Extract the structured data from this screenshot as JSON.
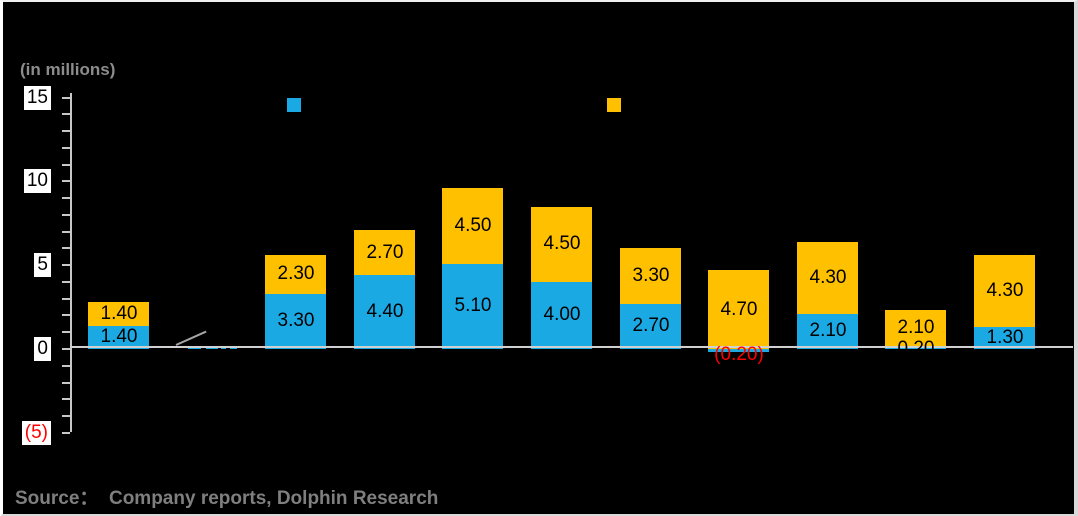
{
  "header": {
    "axis_note": "(in millions)"
  },
  "source_line": "Source：  Company reports, Dolphin Research",
  "colors": {
    "background": "#000000",
    "blue_series": "#1BA9E4",
    "yellow_series": "#FFC000",
    "negative_label": "#FF0000",
    "axis_gray": "#c8c8c8",
    "text_gray": "#7f7f7f",
    "label_black": "#000000",
    "label_box_white": "#ffffff"
  },
  "y_axis": {
    "max": 15,
    "min": -5,
    "minor_tick_step": 1,
    "major_labels": [
      {
        "text": "15",
        "value": 15,
        "color": "#000000"
      },
      {
        "text": "10",
        "value": 10,
        "color": "#000000"
      },
      {
        "text": "5",
        "value": 5,
        "color": "#000000"
      },
      {
        "text": "0",
        "value": 0,
        "color": "#000000"
      },
      {
        "text": "(5)",
        "value": -5,
        "color": "#FF0000"
      }
    ]
  },
  "legend": {
    "items": [
      {
        "name": "blue-series",
        "color": "#1BA9E4",
        "label": ""
      },
      {
        "name": "yellow-series",
        "color": "#FFC000",
        "label": ""
      }
    ]
  },
  "chart_data": {
    "type": "bar",
    "stacked": true,
    "title": "",
    "ylabel": "(in millions)",
    "ylim": [
      -5,
      15
    ],
    "grid": false,
    "legend_position": "top",
    "categories": [
      "",
      "",
      "",
      "",
      "",
      "",
      "",
      "",
      "",
      "",
      ""
    ],
    "series": [
      {
        "name": "blue (bottom segment)",
        "color": "#1BA9E4",
        "values": [
          1.4,
          0.05,
          3.3,
          4.4,
          5.1,
          4.0,
          2.7,
          -0.2,
          2.1,
          0.2,
          1.3
        ],
        "labels": [
          "1.40",
          "",
          "3.30",
          "4.40",
          "5.10",
          "4.00",
          "2.70",
          "(0.20)",
          "2.10",
          "0.20",
          "1.30"
        ]
      },
      {
        "name": "yellow (top segment)",
        "color": "#FFC000",
        "values": [
          1.4,
          0,
          2.3,
          2.7,
          4.5,
          4.5,
          3.3,
          4.7,
          4.3,
          2.1,
          4.3
        ],
        "labels": [
          "1.40",
          "",
          "2.30",
          "2.70",
          "4.50",
          "4.50",
          "3.30",
          "4.70",
          "4.30",
          "2.10",
          "4.30"
        ]
      }
    ],
    "negative_label_color": "#FF0000",
    "callout_bar_index": 1,
    "callout_note": "tiny bar rendered as dashes with gray leader line; its data label is not visible"
  }
}
